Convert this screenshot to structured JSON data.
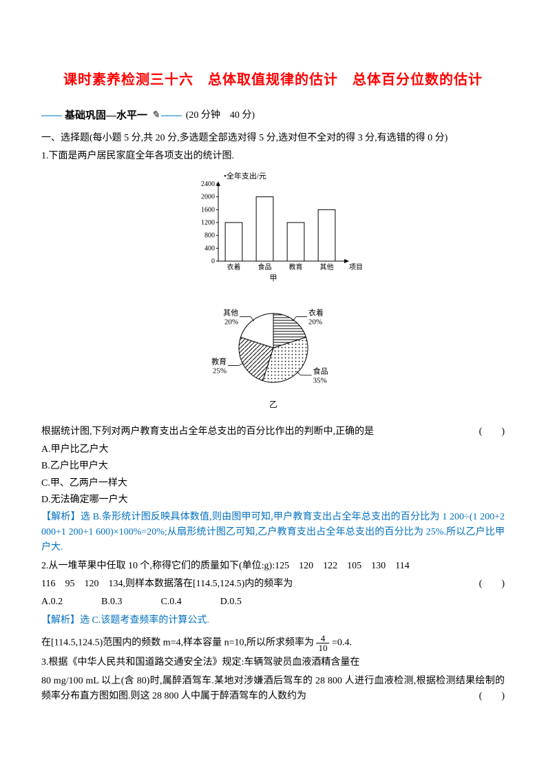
{
  "title": "课时素养检测三十六　总体取值规律的估计　总体百分位数的估计",
  "banner": {
    "label": "基础巩固—水平一",
    "time": "(20 分钟　40 分)"
  },
  "section1_heading": "一、选择题(每小题 5 分,共 20 分,多选题全部选对得 5 分,选对但不全对的得 3 分,有选错的得 0 分)",
  "q1": {
    "stem": "1.下面是两户居民家庭全年各项支出的统计图.",
    "bar_chart": {
      "type": "bar",
      "title": "全年支出/元",
      "categories": [
        "衣着",
        "食品",
        "教育",
        "其他"
      ],
      "values": [
        1200,
        2000,
        1200,
        1600
      ],
      "yticks": [
        0,
        400,
        800,
        1200,
        1600,
        2000,
        2400
      ],
      "ylim": [
        0,
        2400
      ],
      "bar_color": "#ffffff",
      "bar_border": "#000000",
      "axis_color": "#000000",
      "title_fontsize": 11,
      "label_fontsize": 10,
      "xaxis_label": "项目",
      "caption": "甲"
    },
    "pie_chart": {
      "type": "pie",
      "slices": [
        {
          "label": "衣着",
          "pct": 20,
          "pattern": "horiz"
        },
        {
          "label": "食品",
          "pct": 35,
          "pattern": "dots"
        },
        {
          "label": "教育",
          "pct": 25,
          "pattern": "diag"
        },
        {
          "label": "其他",
          "pct": 20,
          "pattern": "blank"
        }
      ],
      "border_color": "#000000",
      "caption": "乙",
      "label_fontsize": 11
    },
    "after_fig": "根据统计图,下列对两户教育支出占全年总支出的百分比作出的判断中,正确的是",
    "options": {
      "A": "A.甲户比乙户大",
      "B": "B.乙户比甲户大",
      "C": "C.甲、乙两户一样大",
      "D": "D.无法确定哪一户大"
    },
    "analysis_label": "【解析】",
    "analysis": "选 B.条形统计图反映具体数值,则由图甲可知,甲户教育支出占全年总支出的百分比为 1 200÷(1 200+2 000+1 200+1 600)×100%=20%;从扇形统计图乙可知,乙户教育支出占全年总支出的百分比为 25%.所以乙户比甲户大."
  },
  "q2": {
    "stem1": "2.从一堆苹果中任取 10 个,称得它们的质量如下(单位:g):125　120　122　105　130　114",
    "stem2": "116　95　120　134,则样本数据落在[114.5,124.5)内的频率为",
    "options": "A.0.2　　　　B.0.3　　　　C.0.4　　　　D.0.5",
    "analysis_label": "【解析】",
    "analysis1": "选 C.该题考查频率的计算公式.",
    "analysis2_pre": "在[114.5,124.5)范围内的频数 m=4,样本容量 n=10,所以所求频率为",
    "frac_num": "4",
    "frac_den": "10",
    "analysis2_post": "=0.4."
  },
  "q3": {
    "stem1": "3.根据《中华人民共和国道路交通安全法》规定:车辆驾驶员血液酒精含量在",
    "stem2": "80 mg/100 mL 以上(含 80)时,属醉酒驾车.某地对涉嫌酒后驾车的 28 800 人进行血液检测,根据检测结果绘制的频率分布直方图如图.则这 28 800 人中属于醉酒驾车的人数约为"
  },
  "paren": "(　　)"
}
